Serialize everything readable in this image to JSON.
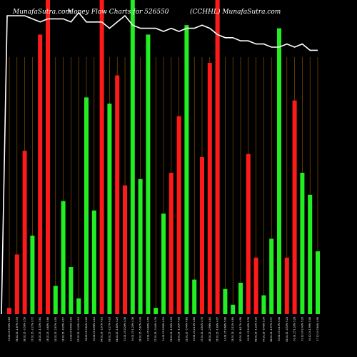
{
  "header": {
    "site": "MunafaSutra.com",
    "title": "Money Flow  Charts for 526550",
    "ticker": "(CCHHL) MunafaSutra.com"
  },
  "chart_data": {
    "type": "bar",
    "title": "Money Flow Charts for 526550",
    "categories": [
      "20.02.25 9.38% 3.89",
      "19.02.25 -1.67% 3.53",
      "18.02.25 -3.50% 3.59",
      "17.02.25 -2.27% 3.72",
      "14.02.25 -1.32% 3.81",
      "13.02.25 -4.60% 3.86",
      "12.02.25 -2.87% 4.05",
      "11.02.25 -0.25% 4.17",
      "10.02.25 0.93% 4.18",
      "07.02.25 -3.43% 4.14",
      "06.02.25 3.61% 4.28",
      "05.02.25 0.96% 4.14",
      "04.02.25 -2.97% 4.10",
      "03.02.25 -2.27% 4.19",
      "01.02.25 -1.62% 4.29",
      "31.01.25 0.28% 4.36",
      "30.01.25 1.20% 4.36",
      "29.01.25 -5.67% 4.34",
      "28.01.25 4.80% 4.59",
      "27.01.25 -3.44% 4.39",
      "24.01.25 0.98% 4.54",
      "23.01.25 -1.90% 4.50",
      "22.01.25 -1.32% 4.58",
      "21.01.25 -5.44% 4.62",
      "20.01.25 2.14% 4.88",
      "17.01.25 -0.81% 4.78",
      "16.01.25 -2.96% 4.82",
      "15.01.25 -1.88% 4.97",
      "14.01.25 3.66% 5.06",
      "13.01.25 -2.11% 4.88",
      "10.01.25 -6.17% 4.98",
      "09.01.25 0.49% 5.30",
      "08.01.25 -1.21% 5.28",
      "07.01.25 -0.48% 5.34",
      "06.01.25 -1.97% 5.37",
      "03.01.25 4.13% 5.46",
      "02.01.25 -0.53% 5.24",
      "01.01.25 1.20% 5.26",
      "31.12.24 2.43% 5.20",
      "30.12.24 1.99% 5.08",
      "27.12.24 3.64% 4.98"
    ],
    "series": [
      {
        "colors": [
          "red",
          "red",
          "red",
          "green",
          "red",
          "red",
          "green",
          "green",
          "green",
          "green",
          "green",
          "green",
          "red",
          "green",
          "red",
          "red",
          "green",
          "green",
          "green",
          "green",
          "green",
          "red",
          "red",
          "green",
          "green",
          "red",
          "red",
          "red",
          "green",
          "green",
          "green",
          "red",
          "red",
          "green",
          "green",
          "green",
          "red",
          "red",
          "green",
          "green",
          "green"
        ],
        "values": [
          2,
          19,
          52,
          25,
          89,
          100,
          9,
          36,
          15,
          5,
          69,
          33,
          100,
          67,
          76,
          41,
          100,
          43,
          89,
          2,
          32,
          45,
          63,
          92,
          11,
          50,
          80,
          100,
          8,
          3,
          10,
          51,
          18,
          6,
          24,
          91,
          18,
          68,
          45,
          38,
          20
        ]
      },
      {
        "name": "price line",
        "values": [
          95,
          95,
          95,
          94,
          93,
          94,
          94,
          94,
          93,
          96,
          93,
          93,
          93,
          91,
          93,
          95,
          92,
          91,
          91,
          91,
          90,
          91,
          90,
          91,
          91,
          92,
          91,
          89,
          88,
          88,
          87,
          87,
          86,
          86,
          85,
          85,
          86,
          85,
          86,
          84,
          84
        ]
      }
    ],
    "ylim": [
      0,
      100
    ],
    "xlabel": "",
    "ylabel": "",
    "grid": true,
    "colors": {
      "red": "#ff1a1a",
      "green": "#22ee22",
      "grid": "#a05a00",
      "line": "#ffffff",
      "background": "#000000"
    }
  }
}
